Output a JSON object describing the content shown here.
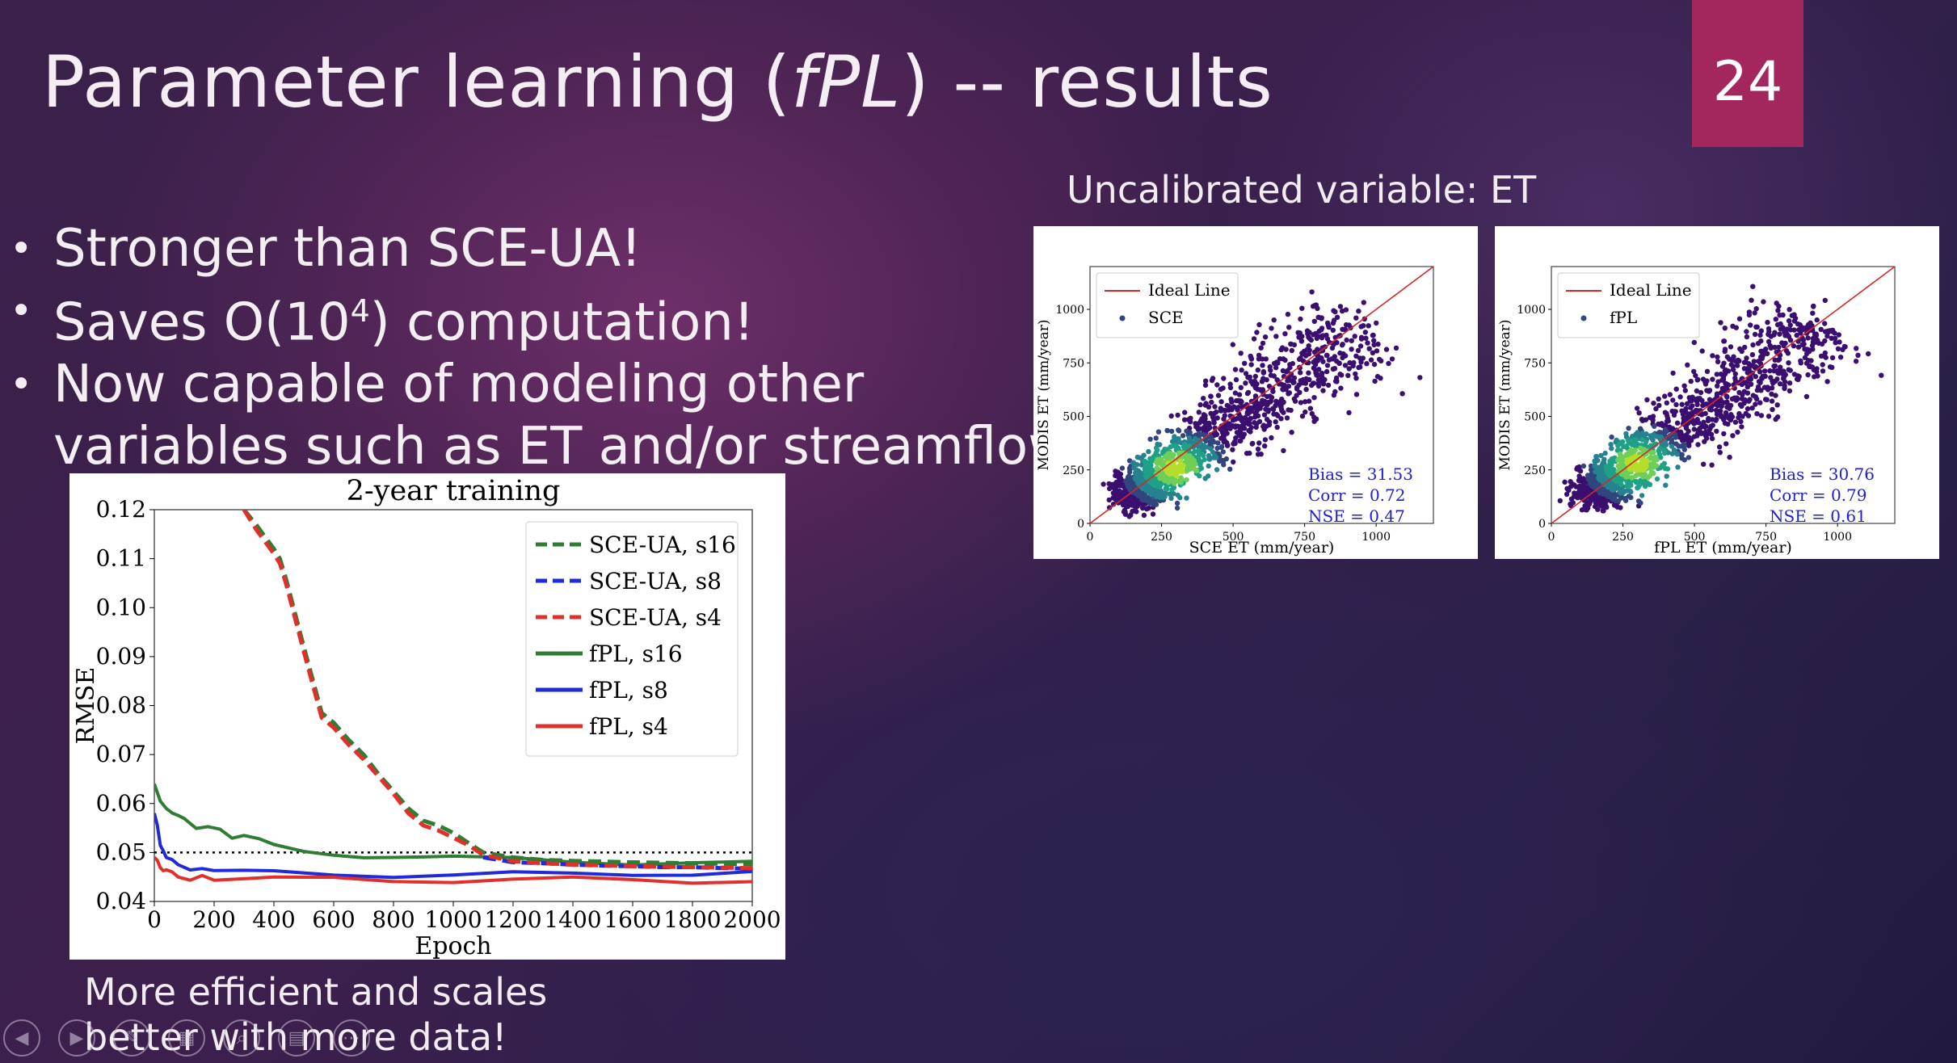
{
  "slide": {
    "title_prefix": "Parameter learning (",
    "title_italic": "fPL",
    "title_suffix": ") -- results",
    "number": "24",
    "bullets": [
      {
        "text": "Stronger than SCE-UA!"
      },
      {
        "pre": "Saves O(10",
        "sup": "4",
        "post": ") computation!"
      },
      {
        "text": "Now capable of modeling other"
      },
      {
        "text": "variables such as ET and/or streamflow"
      }
    ],
    "uncalibrated_caption": "Uncalibrated variable: ET",
    "bottom_caption_line1": "More efficient and scales",
    "bottom_caption_line2": "better with more data!"
  },
  "nav_icons": [
    "back-icon",
    "play-icon",
    "pen-icon",
    "slides-icon",
    "zoom-icon",
    "subtitles-icon",
    "more-icon"
  ],
  "chart_data": [
    {
      "type": "line",
      "title": "2-year training",
      "xlabel": "Epoch",
      "ylabel": "RMSE",
      "xlim": [
        0,
        2000
      ],
      "ylim": [
        0.04,
        0.12
      ],
      "xticks": [
        "0",
        "200",
        "400",
        "600",
        "800",
        "1000",
        "1200",
        "1400",
        "1600",
        "1800",
        "2000"
      ],
      "yticks": [
        "0.04",
        "0.05",
        "0.06",
        "0.07",
        "0.08",
        "0.09",
        "0.10",
        "0.11",
        "0.12"
      ],
      "legend_position": "top-right",
      "reference_line": {
        "y": 0.05,
        "style": "dotted",
        "color": "#000000"
      },
      "series": [
        {
          "name": "SCE-UA, s16",
          "color": "#2e7d32",
          "dash": true,
          "x": [
            300,
            340,
            400,
            420,
            440,
            500,
            540,
            560,
            600,
            650,
            700,
            750,
            800,
            850,
            900,
            950,
            1000,
            1050,
            1100,
            1200,
            1300,
            1400,
            1600,
            1800,
            2000
          ],
          "y": [
            0.12,
            0.117,
            0.112,
            0.11,
            0.106,
            0.092,
            0.083,
            0.0785,
            0.0765,
            0.073,
            0.07,
            0.066,
            0.0625,
            0.059,
            0.0565,
            0.0555,
            0.054,
            0.052,
            0.05,
            0.049,
            0.0485,
            0.0483,
            0.048,
            0.0478,
            0.0476
          ]
        },
        {
          "name": "SCE-UA, s8",
          "color": "#1f2bd8",
          "dash": true,
          "x": [
            1100,
            1200,
            1300,
            1400,
            1500,
            1600,
            1700,
            1800,
            1900,
            2000
          ],
          "y": [
            0.049,
            0.048,
            0.0478,
            0.0475,
            0.0473,
            0.0472,
            0.047,
            0.047,
            0.0468,
            0.0467
          ]
        },
        {
          "name": "SCE-UA, s4",
          "color": "#e0302c",
          "dash": true,
          "x": [
            300,
            340,
            400,
            420,
            440,
            500,
            540,
            560,
            600,
            650,
            700,
            750,
            800,
            850,
            900,
            950,
            1000,
            1050,
            1100,
            1200,
            1300,
            1400,
            1600,
            1800,
            2000
          ],
          "y": [
            0.12,
            0.116,
            0.111,
            0.109,
            0.105,
            0.091,
            0.082,
            0.0775,
            0.0755,
            0.072,
            0.069,
            0.0655,
            0.062,
            0.058,
            0.0555,
            0.0545,
            0.053,
            0.0515,
            0.0495,
            0.0482,
            0.0478,
            0.0475,
            0.0472,
            0.047,
            0.0468
          ]
        },
        {
          "name": "fPL, s16",
          "color": "#2e7d32",
          "dash": false,
          "x": [
            0,
            20,
            40,
            60,
            80,
            100,
            140,
            180,
            220,
            260,
            300,
            350,
            400,
            450,
            500,
            600,
            700,
            800,
            900,
            1000,
            1200,
            1400,
            1600,
            1800,
            2000
          ],
          "y": [
            0.064,
            0.061,
            0.0595,
            0.058,
            0.057,
            0.0565,
            0.0555,
            0.055,
            0.0545,
            0.0535,
            0.053,
            0.0525,
            0.0515,
            0.051,
            0.0505,
            0.05,
            0.0495,
            0.0493,
            0.049,
            0.0488,
            0.0485,
            0.0483,
            0.048,
            0.0478,
            0.0476
          ]
        },
        {
          "name": "fPL, s8",
          "color": "#1f2bd8",
          "dash": false,
          "x": [
            0,
            10,
            20,
            30,
            40,
            60,
            80,
            120,
            160,
            200,
            300,
            400,
            600,
            800,
            1000,
            1200,
            1400,
            1600,
            1800,
            2000
          ],
          "y": [
            0.058,
            0.055,
            0.052,
            0.05,
            0.049,
            0.048,
            0.047,
            0.047,
            0.0465,
            0.046,
            0.0458,
            0.0457,
            0.0455,
            0.0455,
            0.0455,
            0.0455,
            0.0455,
            0.0458,
            0.0458,
            0.0458
          ]
        },
        {
          "name": "fPL, s4",
          "color": "#e0302c",
          "dash": false,
          "x": [
            0,
            10,
            20,
            30,
            40,
            60,
            80,
            120,
            160,
            200,
            300,
            400,
            600,
            800,
            1000,
            1200,
            1400,
            1600,
            1800,
            2000
          ],
          "y": [
            0.049,
            0.048,
            0.047,
            0.0465,
            0.046,
            0.0455,
            0.045,
            0.0448,
            0.0447,
            0.0446,
            0.0445,
            0.0445,
            0.0445,
            0.0444,
            0.0444,
            0.0444,
            0.0444,
            0.0444,
            0.0443,
            0.0443
          ]
        }
      ]
    },
    {
      "type": "scatter",
      "xlabel": "SCE ET (mm/year)",
      "ylabel": "MODIS ET (mm/year)",
      "xlim": [
        0,
        1200
      ],
      "ylim": [
        0,
        1200
      ],
      "xticks": [
        "0",
        "250",
        "500",
        "750",
        "1000"
      ],
      "yticks": [
        "0",
        "250",
        "500",
        "750",
        "1000"
      ],
      "legend": [
        "Ideal Line",
        "SCE"
      ],
      "legend_position": "top-left",
      "stats": [
        "Bias = 31.53",
        "Corr = 0.72",
        "NSE = 0.47"
      ],
      "density_center": [
        300,
        260
      ],
      "ideal_line": [
        [
          0,
          0
        ],
        [
          1200,
          1200
        ]
      ]
    },
    {
      "type": "scatter",
      "xlabel": "fPL ET (mm/year)",
      "ylabel": "MODIS ET (mm/year)",
      "xlim": [
        0,
        1200
      ],
      "ylim": [
        0,
        1200
      ],
      "xticks": [
        "0",
        "250",
        "500",
        "750",
        "1000"
      ],
      "yticks": [
        "0",
        "250",
        "500",
        "750",
        "1000"
      ],
      "legend": [
        "Ideal Line",
        "fPL"
      ],
      "legend_position": "top-left",
      "stats": [
        "Bias = 30.76",
        "Corr = 0.79",
        "NSE = 0.61"
      ],
      "density_center": [
        300,
        280
      ],
      "ideal_line": [
        [
          0,
          0
        ],
        [
          1200,
          1200
        ]
      ]
    }
  ]
}
